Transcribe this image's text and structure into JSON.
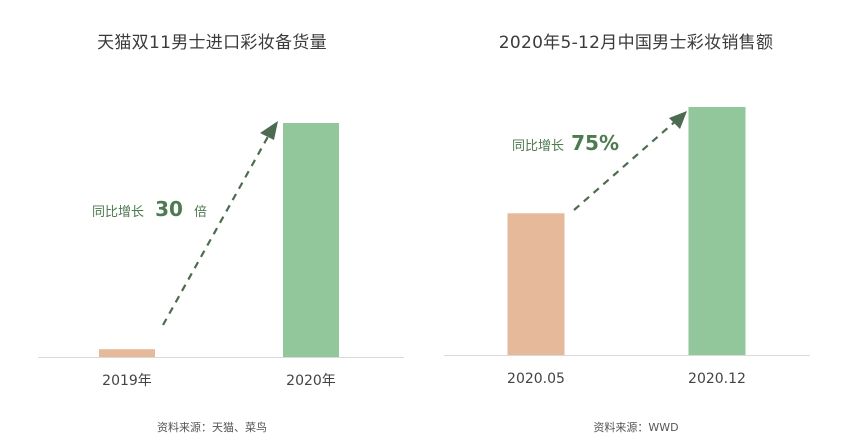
{
  "chart_data": [
    {
      "type": "bar",
      "title": "天猫双11男士进口彩妆备货量",
      "categories": [
        "2019年",
        "2020年"
      ],
      "values": [
        1,
        30
      ],
      "colors": [
        "#e5b999",
        "#92c69b"
      ],
      "annotation": {
        "prefix": "同比增长",
        "value": "30",
        "suffix": "倍"
      },
      "source": "资料来源：天猫、菜鸟",
      "grid": false
    },
    {
      "type": "bar",
      "title": "2020年5-12月中国男士彩妆销售额",
      "categories": [
        "2020.05",
        "2020.12"
      ],
      "values": [
        100,
        175
      ],
      "colors": [
        "#e5b999",
        "#92c69b"
      ],
      "annotation": {
        "prefix": "同比增长",
        "value": "75%",
        "suffix": ""
      },
      "source": "资料来源：WWD",
      "grid": false
    }
  ],
  "colors": {
    "axis": "#d9d9d9",
    "arrow": "#4d6b50",
    "annotation": "#4d7a50"
  }
}
